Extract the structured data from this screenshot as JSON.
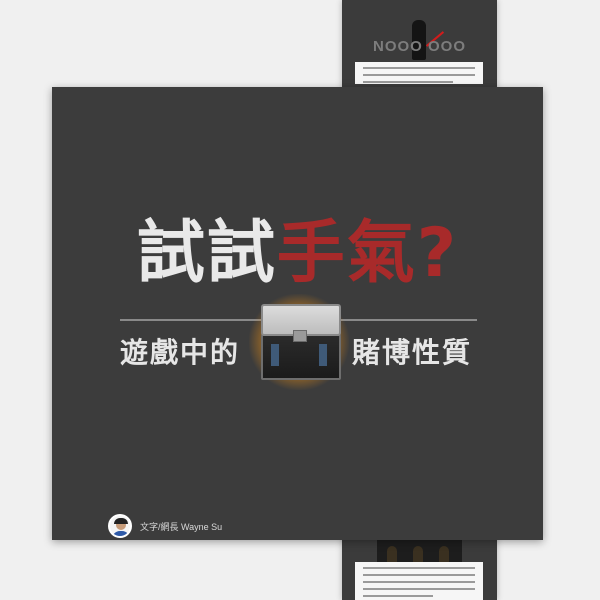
{
  "strip": {
    "top_title": "NOOO  OOO"
  },
  "cover": {
    "headline_white": "試試",
    "headline_red": "手氣?",
    "subtitle_left": "遊戲中的",
    "subtitle_right": "賭博性質",
    "author_credit": "文字/網長 Wayne Su"
  },
  "colors": {
    "background": "#f0f0f0",
    "card": "#3c3c3c",
    "headline_white": "#e9e9e9",
    "headline_red": "#a82a2a",
    "loot_glow": "#f2a623"
  },
  "icons": {
    "lootbox": "loot-box-icon",
    "avatar": "author-avatar",
    "strip_figure": "darth-vader-figure"
  }
}
